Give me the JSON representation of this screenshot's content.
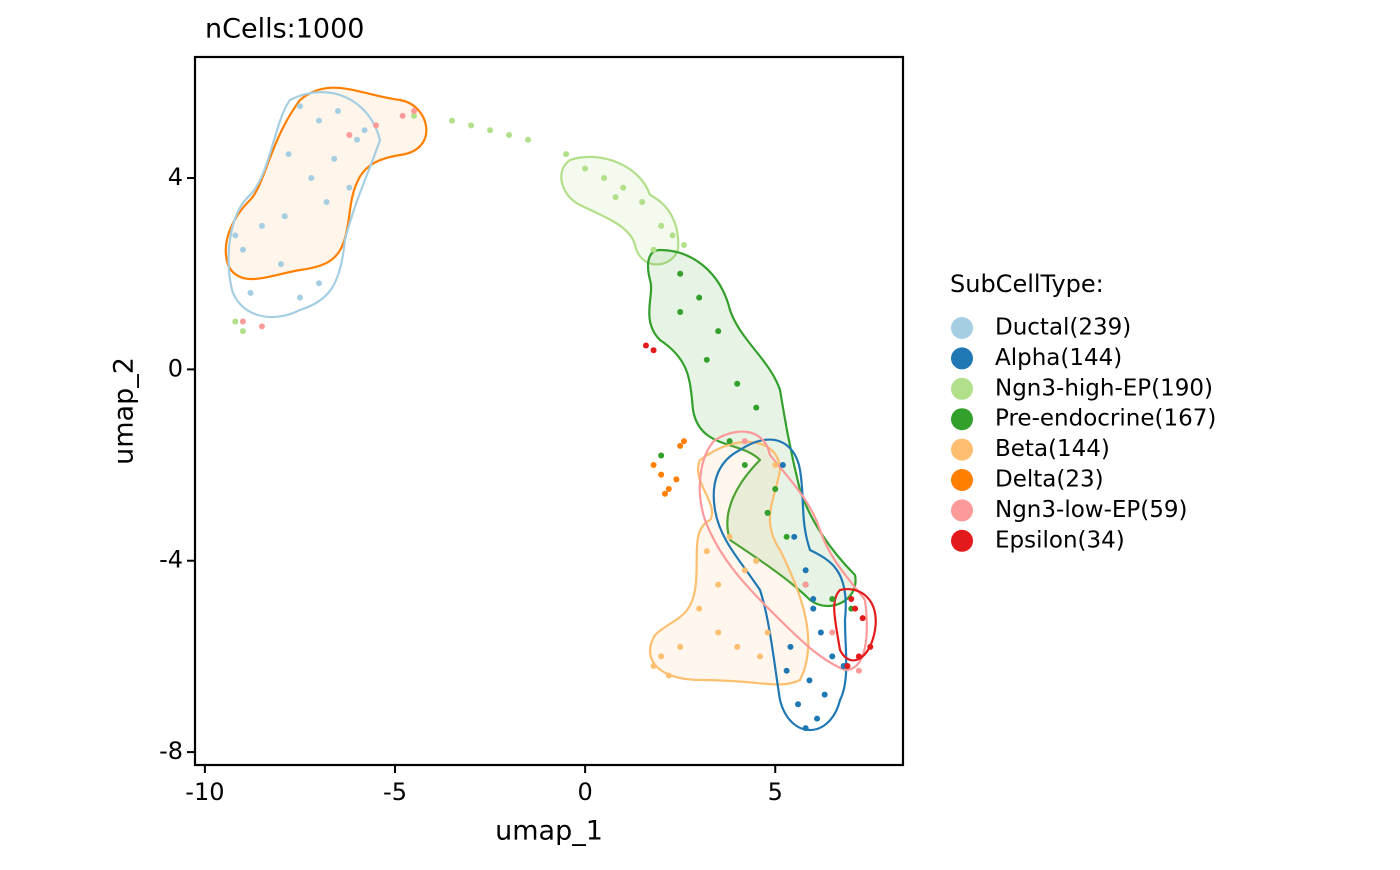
{
  "chart_data": {
    "type": "scatter",
    "title": "nCells:1000",
    "x_label": "umap_1",
    "y_label": "umap_2",
    "legend_title": "SubCellType:",
    "legend": "right",
    "xlim": [
      -10.26,
      8.36
    ],
    "ylim": [
      -8.27,
      6.53
    ],
    "xticks": [
      -10,
      -5,
      0,
      5
    ],
    "yticks": [
      -8,
      -4,
      0,
      4
    ],
    "series": [
      {
        "name": "Ductal(239)",
        "color": "#a6cee3",
        "x": [
          -7.5,
          -7,
          -6.5,
          -6,
          -7.8,
          -7.2,
          -6.8,
          -8.5,
          -9,
          -8,
          -7,
          -6.2,
          -5.8,
          -7.5,
          -8.8,
          -9.2,
          -6.6,
          -7.9
        ],
        "values": [
          5.5,
          5.2,
          5.4,
          4.8,
          4.5,
          4.0,
          3.5,
          3.0,
          2.5,
          2.2,
          1.8,
          3.8,
          5.0,
          1.5,
          1.6,
          2.8,
          4.4,
          3.2
        ]
      },
      {
        "name": "Alpha(144)",
        "color": "#1f78b4",
        "x": [
          5.2,
          5.5,
          5.8,
          6.0,
          6.2,
          6.5,
          5.9,
          6.3,
          5.6,
          6.1,
          5.4,
          6.8,
          5.8,
          6.0,
          4.8,
          5.3
        ],
        "values": [
          -2.0,
          -3.5,
          -4.2,
          -5.0,
          -5.5,
          -6.0,
          -6.5,
          -6.8,
          -7.0,
          -7.3,
          -5.8,
          -6.2,
          -7.5,
          -4.8,
          -3.0,
          -6.3
        ]
      },
      {
        "name": "Ngn3-high-EP(190)",
        "color": "#b2df8a",
        "x": [
          -4.5,
          -3.5,
          -2.5,
          -1.5,
          -0.5,
          0,
          0.5,
          1,
          1.5,
          2,
          2.3,
          2.6,
          -9.2,
          -9,
          -3,
          -2,
          0.8,
          1.8
        ],
        "values": [
          5.3,
          5.2,
          5.0,
          4.8,
          4.5,
          4.2,
          4.0,
          3.8,
          3.5,
          3.0,
          2.8,
          2.6,
          1.0,
          0.8,
          5.1,
          4.9,
          3.6,
          2.5
        ]
      },
      {
        "name": "Pre-endocrine(167)",
        "color": "#33a02c",
        "x": [
          2.5,
          3,
          3.5,
          3.2,
          4,
          4.5,
          3.8,
          4.2,
          5,
          4.8,
          5.3,
          4.5,
          5.8,
          6.5,
          7,
          2.0,
          2.5
        ],
        "values": [
          2.0,
          1.5,
          0.8,
          0.2,
          -0.3,
          -0.8,
          -1.5,
          -2.0,
          -2.5,
          -3.0,
          -3.5,
          -4.0,
          -4.5,
          -4.8,
          -5.0,
          -1.8,
          1.2
        ]
      },
      {
        "name": "Beta(144)",
        "color": "#fdbf6f",
        "x": [
          3.8,
          4.5,
          4.2,
          3.5,
          3,
          3.5,
          4.0,
          2.5,
          2.0,
          1.8,
          2.2,
          4.8,
          5.0,
          3.2,
          4.6
        ],
        "values": [
          -3.5,
          -4,
          -4.2,
          -4.5,
          -5.0,
          -5.5,
          -5.8,
          -5.8,
          -6.0,
          -6.2,
          -6.4,
          -5.5,
          -2.0,
          -3.8,
          -6.0
        ]
      },
      {
        "name": "Delta(23)",
        "color": "#ff7f00",
        "x": [
          1.8,
          2.0,
          2.2,
          2.4,
          2.5,
          2.6,
          2.1
        ],
        "values": [
          -2.0,
          -2.2,
          -2.5,
          -2.3,
          -1.6,
          -1.5,
          -2.6
        ]
      },
      {
        "name": "Ngn3-low-EP(59)",
        "color": "#fb9a99",
        "x": [
          -4.8,
          -5.5,
          -6.2,
          -9.0,
          -8.5,
          -4.5,
          4.2,
          5.8,
          6.5,
          7.2
        ],
        "values": [
          5.3,
          5.1,
          4.9,
          1.0,
          0.9,
          5.4,
          -1.5,
          -4.5,
          -5.5,
          -6.3
        ]
      },
      {
        "name": "Epsilon(34)",
        "color": "#e31a1c",
        "x": [
          1.6,
          1.8,
          7.0,
          7.3,
          7.5,
          7.2,
          6.9,
          7.1
        ],
        "values": [
          0.5,
          0.4,
          -4.8,
          -5.2,
          -5.8,
          -6.0,
          -6.2,
          -5.0
        ]
      }
    ]
  }
}
